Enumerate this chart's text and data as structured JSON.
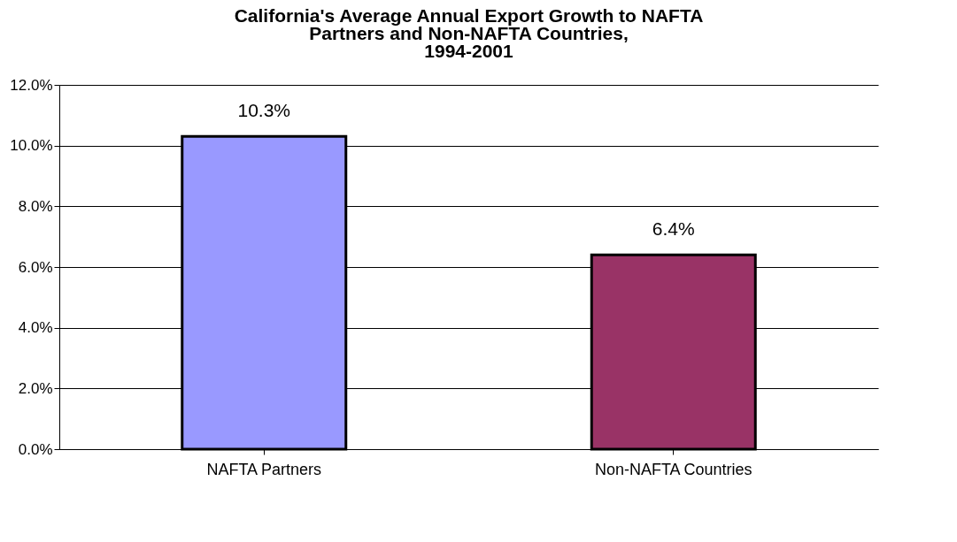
{
  "chart_data": {
    "type": "bar",
    "title": "California's Average Annual Export Growth to NAFTA\nPartners and Non-NAFTA Countries,\n1994-2001",
    "categories": [
      "NAFTA Partners",
      "Non-NAFTA Countries"
    ],
    "values": [
      10.3,
      6.4
    ],
    "colors": [
      "#9999ff",
      "#993366"
    ],
    "value_labels": [
      "10.3%",
      "6.4%"
    ],
    "ylim": [
      0,
      12
    ],
    "yticks": [
      {
        "value": 0,
        "label": "0.0%"
      },
      {
        "value": 2,
        "label": "2.0%"
      },
      {
        "value": 4,
        "label": "4.0%"
      },
      {
        "value": 6,
        "label": "6.0%"
      },
      {
        "value": 8,
        "label": "8.0%"
      },
      {
        "value": 10,
        "label": "10.0%"
      },
      {
        "value": 12,
        "label": "12.0%"
      }
    ],
    "grid": "y",
    "legend": false
  }
}
